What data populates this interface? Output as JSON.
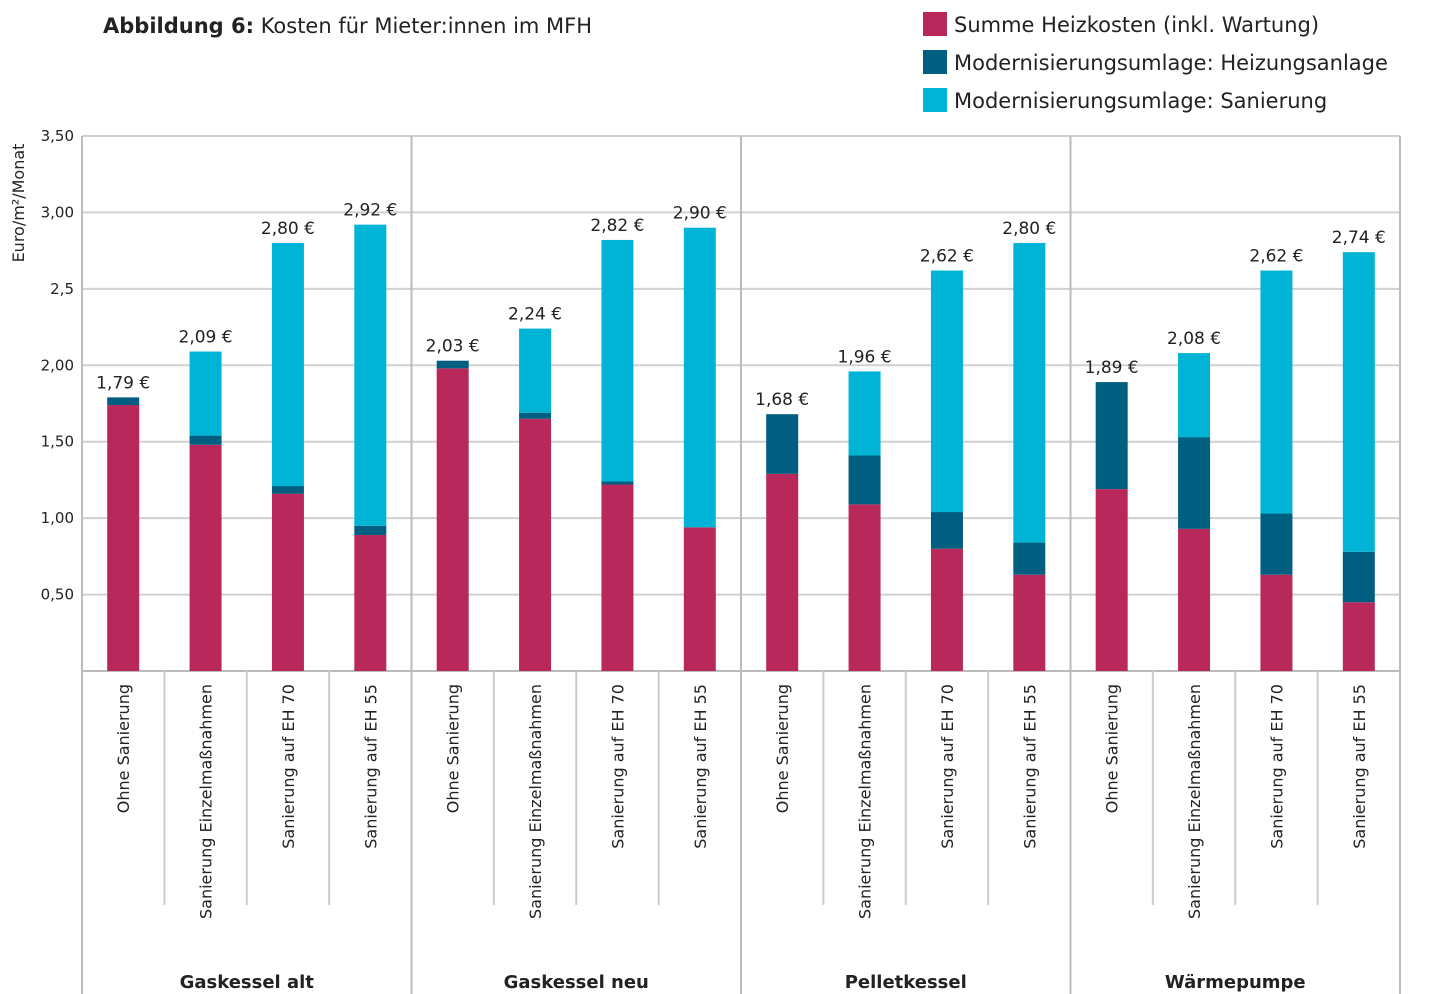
{
  "chart_data": {
    "type": "stacked_bar",
    "title_prefix": "Abbildung 6:",
    "title": "Kosten für Mieter:innen im MFH",
    "y_label": "Euro/m²/Monat",
    "groups": [
      "Gaskessel alt",
      "Gaskessel neu",
      "Pelletkessel",
      "Wärmepumpe"
    ],
    "categories": [
      "Ohne Sanierung",
      "Sanierung Einzelmaßnahmen",
      "Sanierung auf EH 70",
      "Sanierung auf EH 55",
      "Ohne Sanierung",
      "Sanierung Einzelmaßnahmen",
      "Sanierung auf EH 70",
      "Sanierung auf EH 55",
      "Ohne Sanierung",
      "Sanierung Einzelmaßnahmen",
      "Sanierung auf EH 70",
      "Sanierung auf EH 55",
      "Ohne Sanierung",
      "Sanierung Einzelmaßnahmen",
      "Sanierung auf EH 70",
      "Sanierung auf EH 55"
    ],
    "series": [
      {
        "name": "Summe Heizkosten (inkl. Wartung)",
        "color": "#b8285a",
        "values": [
          1.74,
          1.48,
          1.16,
          0.89,
          1.98,
          1.65,
          1.22,
          0.94,
          1.29,
          1.09,
          0.8,
          0.63,
          1.19,
          0.93,
          0.63,
          0.45
        ]
      },
      {
        "name": "Modernisierungsumlage: Heizungsanlage",
        "color": "#005f80",
        "values": [
          0.05,
          0.06,
          0.05,
          0.06,
          0.05,
          0.04,
          0.02,
          0,
          0.39,
          0.32,
          0.24,
          0.21,
          0.7,
          0.6,
          0.4,
          0.33
        ]
      },
      {
        "name": "Modernisierungsumlage: Sanierung",
        "color": "#00b4d6",
        "values": [
          0,
          0.55,
          1.59,
          1.97,
          0,
          0.55,
          1.58,
          1.96,
          0,
          0.55,
          1.58,
          1.96,
          0,
          0.55,
          1.59,
          1.96
        ]
      }
    ],
    "totals": [
      1.79,
      2.09,
      2.8,
      2.92,
      2.03,
      2.24,
      2.82,
      2.9,
      1.68,
      1.96,
      2.62,
      2.8,
      1.89,
      2.08,
      2.62,
      2.74
    ],
    "total_labels": [
      "1,79 €",
      "2,09 €",
      "2,80 €",
      "2,92 €",
      "2,03 €",
      "2,24 €",
      "2,82 €",
      "2,90 €",
      "1,68 €",
      "1,96 €",
      "2,62 €",
      "2,80 €",
      "1,89 €",
      "2,08 €",
      "2,62 €",
      "2,74 €"
    ],
    "ylim": [
      0,
      3.5
    ],
    "yticks": [
      {
        "value": 0.5,
        "label": "0,50"
      },
      {
        "value": 1,
        "label": "1,00"
      },
      {
        "value": 1.5,
        "label": "1,50"
      },
      {
        "value": 2,
        "label": "2,00"
      },
      {
        "value": 2.5,
        "label": "2,5"
      },
      {
        "value": 3,
        "label": "3,00"
      },
      {
        "value": 3.5,
        "label": "3,50"
      }
    ],
    "grid": true,
    "legend": "top-right"
  }
}
